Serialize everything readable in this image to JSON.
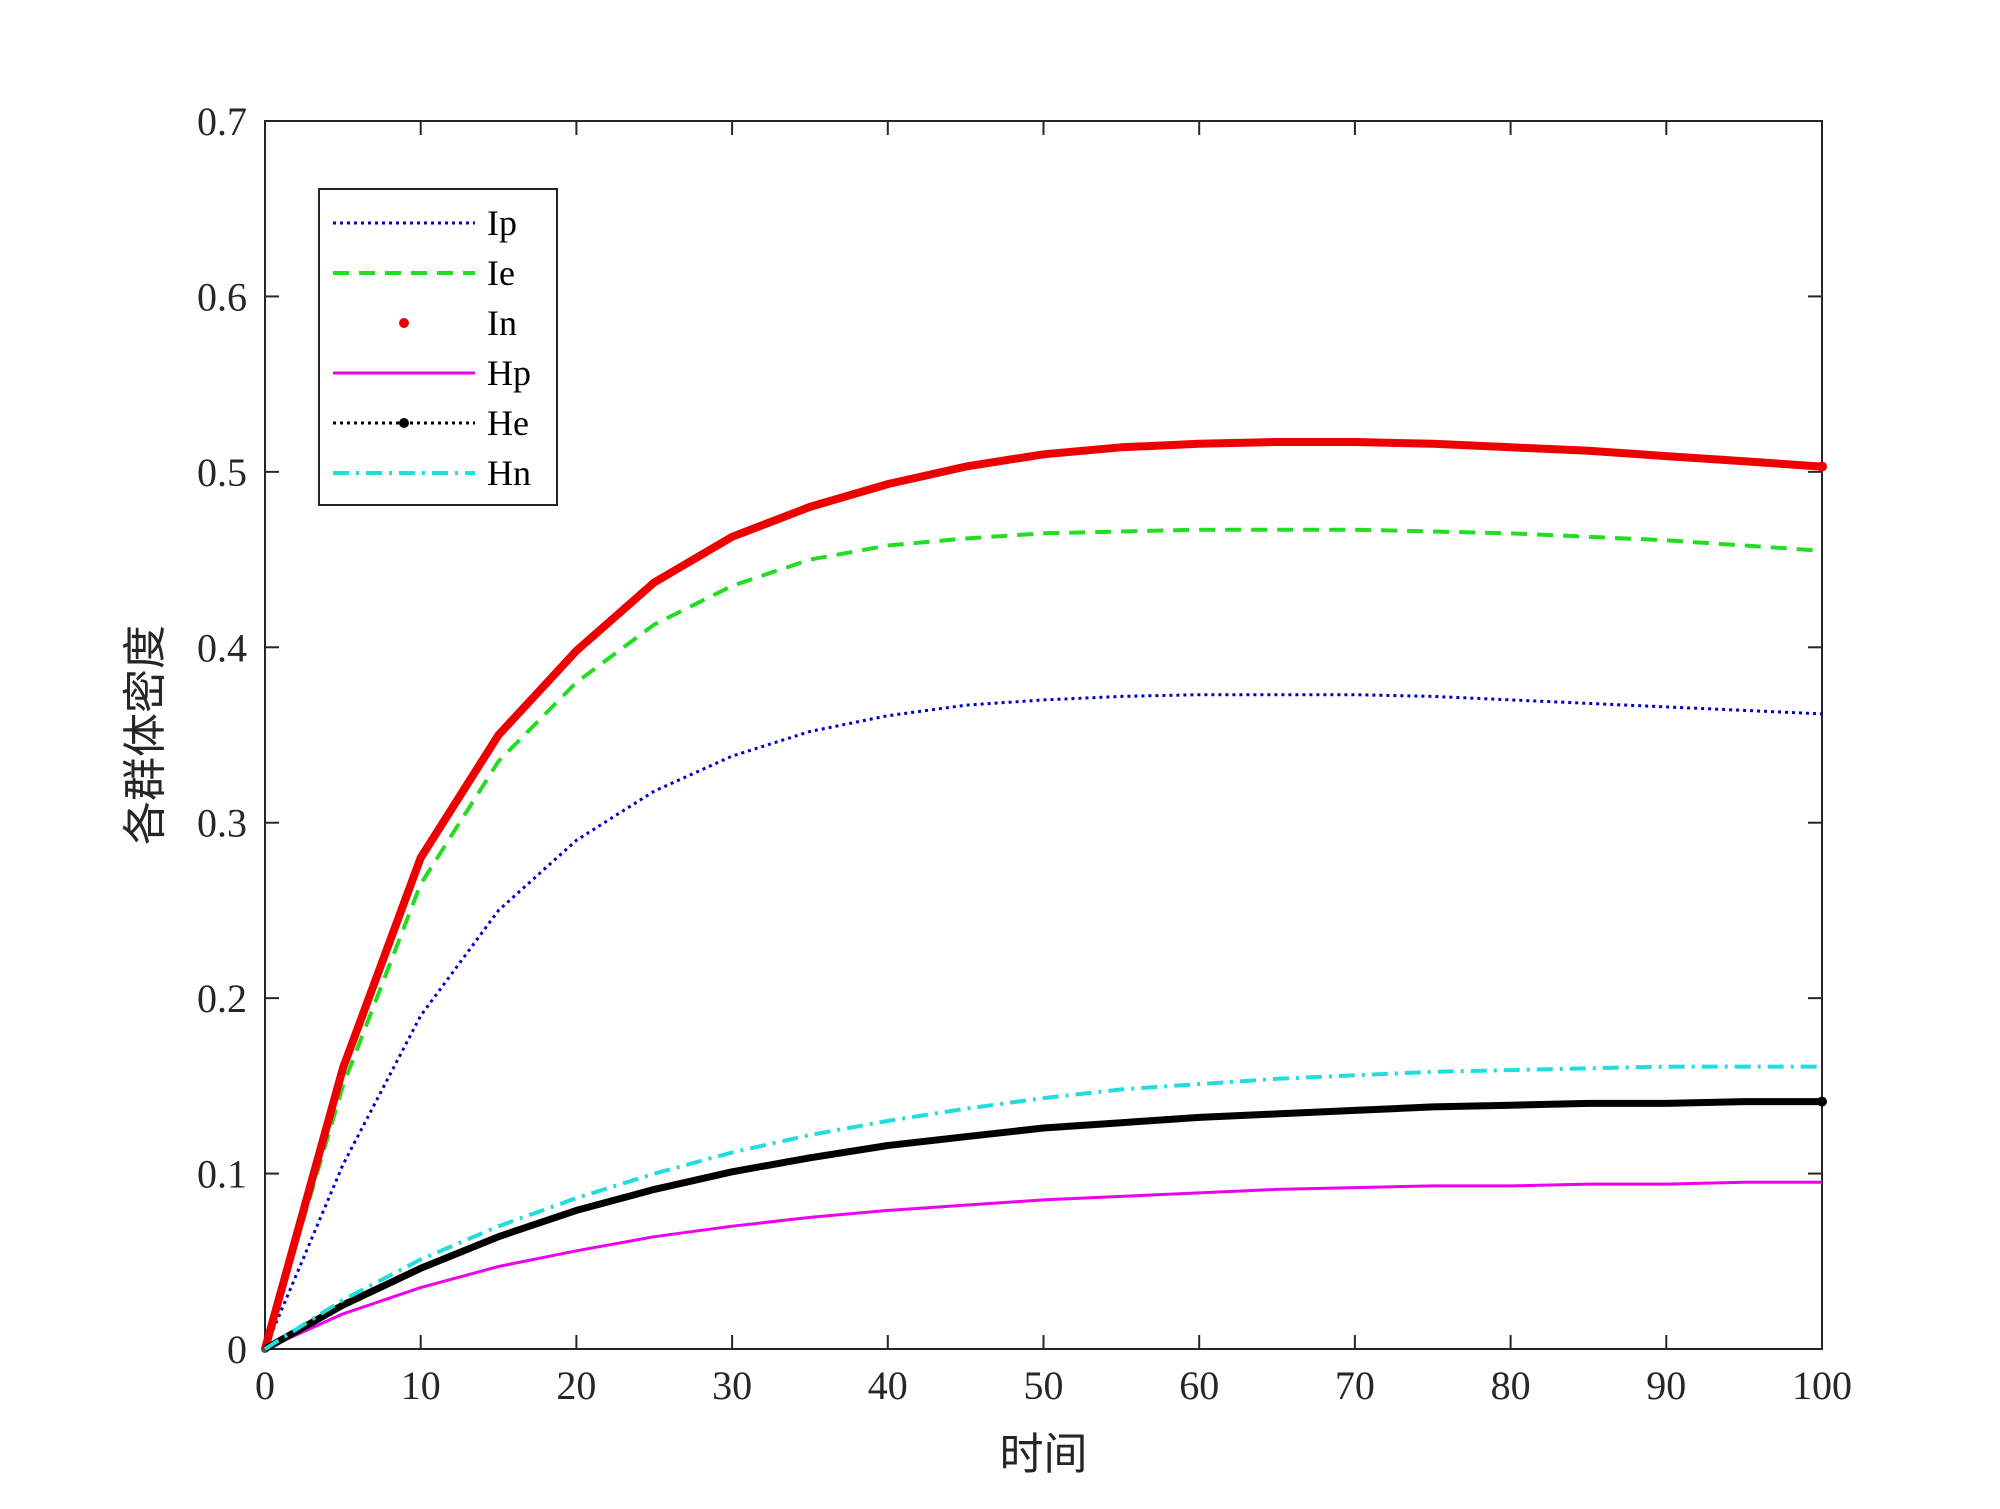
{
  "chart_data": {
    "type": "line",
    "title": "",
    "xlabel": "时间",
    "ylabel": "各群体密度",
    "xlim": [
      0,
      100
    ],
    "ylim": [
      0,
      0.7
    ],
    "xticks": [
      0,
      10,
      20,
      30,
      40,
      50,
      60,
      70,
      80,
      90,
      100
    ],
    "yticks": [
      0,
      0.1,
      0.2,
      0.3,
      0.4,
      0.5,
      0.6,
      0.7
    ],
    "grid": false,
    "legend_position": "top-left",
    "x": [
      0,
      5,
      10,
      15,
      20,
      25,
      30,
      35,
      40,
      45,
      50,
      55,
      60,
      65,
      70,
      75,
      80,
      85,
      90,
      95,
      100
    ],
    "series": [
      {
        "name": "Ip",
        "color": "#0000cc",
        "style": "dotted",
        "marker": "none",
        "values": [
          0,
          0.105,
          0.19,
          0.25,
          0.29,
          0.318,
          0.338,
          0.352,
          0.361,
          0.367,
          0.37,
          0.372,
          0.373,
          0.373,
          0.373,
          0.372,
          0.37,
          0.368,
          0.366,
          0.364,
          0.362
        ]
      },
      {
        "name": "Ie",
        "color": "#22dd22",
        "style": "dashed",
        "marker": "none",
        "values": [
          0,
          0.15,
          0.265,
          0.335,
          0.38,
          0.413,
          0.435,
          0.45,
          0.458,
          0.462,
          0.465,
          0.466,
          0.467,
          0.467,
          0.467,
          0.466,
          0.465,
          0.463,
          0.461,
          0.458,
          0.455
        ]
      },
      {
        "name": "In",
        "color": "#ee0000",
        "style": "solid-thick",
        "marker": "dot",
        "values": [
          0,
          0.16,
          0.28,
          0.35,
          0.398,
          0.437,
          0.463,
          0.48,
          0.493,
          0.503,
          0.51,
          0.514,
          0.516,
          0.517,
          0.517,
          0.516,
          0.514,
          0.512,
          0.509,
          0.506,
          0.503
        ]
      },
      {
        "name": "Hp",
        "color": "#ee00ee",
        "style": "solid",
        "marker": "none",
        "values": [
          0,
          0.02,
          0.035,
          0.047,
          0.056,
          0.064,
          0.07,
          0.075,
          0.079,
          0.082,
          0.085,
          0.087,
          0.089,
          0.091,
          0.092,
          0.093,
          0.093,
          0.094,
          0.094,
          0.095,
          0.095
        ]
      },
      {
        "name": "He",
        "color": "#000000",
        "style": "dotted",
        "marker": "dot",
        "values": [
          0,
          0.025,
          0.046,
          0.064,
          0.079,
          0.091,
          0.101,
          0.109,
          0.116,
          0.121,
          0.126,
          0.129,
          0.132,
          0.134,
          0.136,
          0.138,
          0.139,
          0.14,
          0.14,
          0.141,
          0.141
        ]
      },
      {
        "name": "Hn",
        "color": "#22dddd",
        "style": "dashdot",
        "marker": "none",
        "values": [
          0,
          0.028,
          0.051,
          0.07,
          0.086,
          0.1,
          0.112,
          0.122,
          0.13,
          0.137,
          0.143,
          0.148,
          0.151,
          0.154,
          0.156,
          0.158,
          0.159,
          0.16,
          0.161,
          0.161,
          0.161
        ]
      }
    ]
  }
}
